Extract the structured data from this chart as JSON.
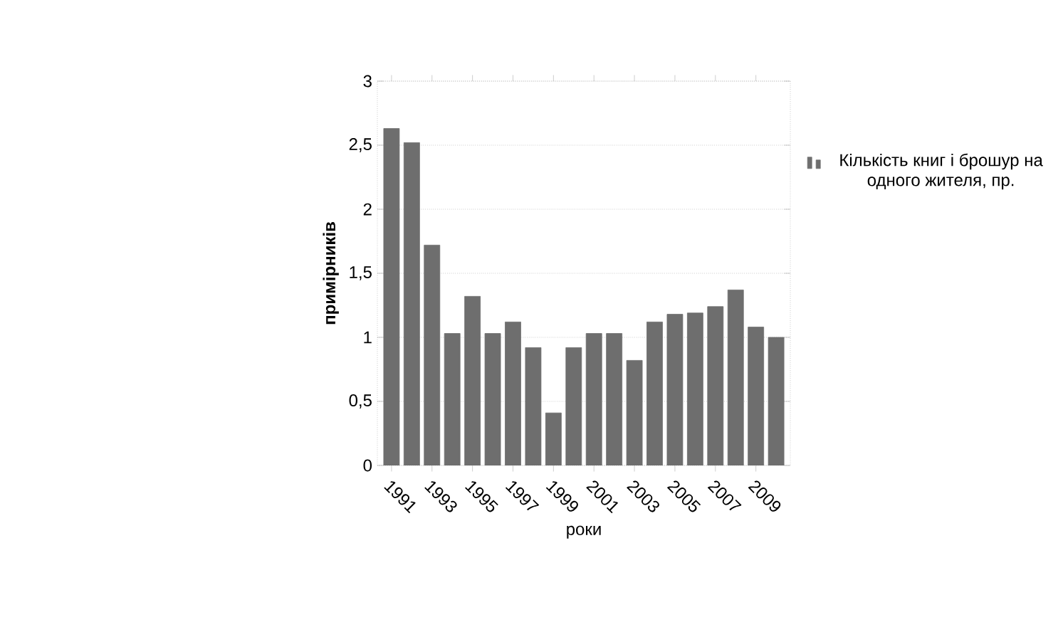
{
  "chart_data": {
    "type": "bar",
    "categories": [
      "1991",
      null,
      "1993",
      null,
      "1995",
      null,
      "1997",
      null,
      "1999",
      null,
      "2001",
      null,
      "2003",
      null,
      "2005",
      null,
      "2007",
      null,
      "2009",
      null
    ],
    "series": [
      {
        "name": "Кількість книг і брошур на одного жителя, пр.",
        "color": "#6e6e6e",
        "values": [
          2.63,
          2.52,
          1.72,
          1.03,
          1.32,
          1.03,
          1.12,
          0.92,
          0.41,
          0.92,
          1.03,
          1.03,
          0.82,
          1.12,
          1.18,
          1.19,
          1.24,
          1.37,
          1.08,
          1.0
        ]
      }
    ],
    "xlabel": "роки",
    "ylabel": "примірників",
    "ylim": [
      0,
      3
    ],
    "yticks": [
      0,
      {
        "value": 0.5,
        "label": "0,5"
      },
      1,
      {
        "value": 1.5,
        "label": "1,5"
      },
      2,
      {
        "value": 2.5,
        "label": "2,5"
      },
      3
    ],
    "grid": "y",
    "legend": "right"
  }
}
